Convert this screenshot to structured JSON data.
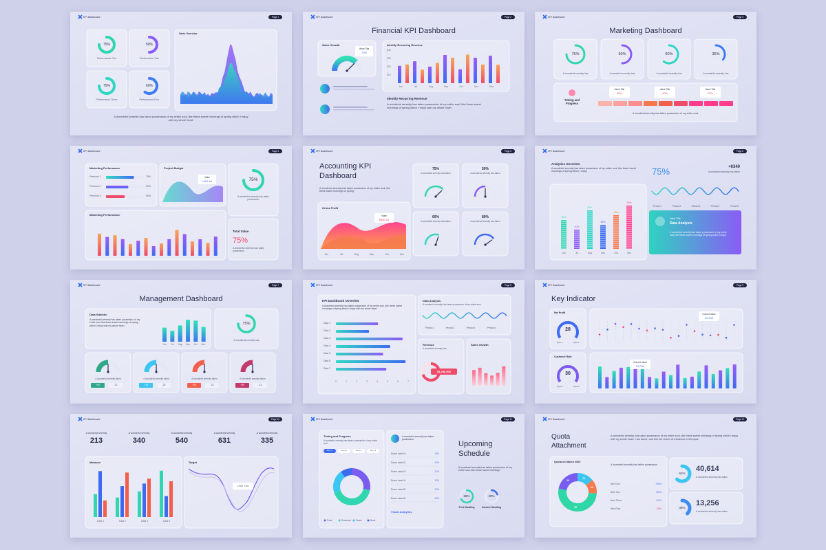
{
  "brand": "KPI Dashboard",
  "slides": [
    {
      "page": "Page 1",
      "cards": [
        {
          "value": 75,
          "label": "75%",
          "caption": "Performance One"
        },
        {
          "value": 50,
          "label": "50%",
          "caption": "Performance Two"
        },
        {
          "value": 75,
          "label": "75%",
          "caption": "Performance Three"
        },
        {
          "value": 60,
          "label": "60%",
          "caption": "Performance Four"
        }
      ],
      "chart_title": "Sales Overview",
      "text": "A wonderful serenity has taken possession of my entire soul, like these sweet mornings of spring which I enjoy with my whole heart."
    },
    {
      "page": "Page 2",
      "title": "Financial KPI Dashboard",
      "gauge_title": "Sales Growth",
      "tag_title": "Value Title",
      "tag_value": "75%",
      "chart_title": "Identify Recurring Revenue",
      "months": [
        "Jun",
        "Jul",
        "Aug",
        "Sep",
        "Oct",
        "Nov",
        "Dec"
      ],
      "yticks": [
        "$40",
        "$30",
        "$20",
        "$10"
      ],
      "subtitle": "Identify Recurring Revenue",
      "text": "A wonderful serenity has taken possession of my entire soul, like these sweet mornings of spring which I enjoy with my whole heart."
    },
    {
      "page": "Page 3",
      "title": "Marketing Dashboard",
      "cards": [
        {
          "value": 75,
          "label": "75%",
          "caption": "A wonderful serenity has"
        },
        {
          "value": 50,
          "label": "50%",
          "caption": "A wonderful serenity has"
        },
        {
          "value": 60,
          "label": "60%",
          "caption": "A wonderful serenity has"
        },
        {
          "value": 35,
          "label": "35%",
          "caption": "A wonderful serenity has"
        }
      ],
      "progress_title": "Timing and Progress",
      "tags": [
        {
          "title": "Value Title",
          "value": "35%"
        },
        {
          "title": "Value Title",
          "value": "40%"
        },
        {
          "title": "Value Title",
          "value": "20%"
        }
      ],
      "text": "A wonderful serenity has taken possession of my entire soul."
    },
    {
      "page": "Page 4",
      "perf_title": "Marketing Performance",
      "rows": [
        {
          "name": "Premium 1",
          "value": 75,
          "label": "75%"
        },
        {
          "name": "Premium 2",
          "value": 60,
          "label": "60%"
        },
        {
          "name": "Premium 3",
          "value": 50,
          "label": "50%"
        }
      ],
      "budget_title": "Project Budget",
      "budget_tag": "Value",
      "budget_value": "USD 50",
      "ring": {
        "value": 75,
        "label": "75%"
      },
      "ring_text": "A wonderful serenity has taken possession",
      "chart_title": "Marketing Performance",
      "total_title": "Total Value",
      "total_value": "75%",
      "total_text": "A wonderful serenity has taken possession"
    },
    {
      "page": "Page 5",
      "title": "Accounting KPI Dashboard",
      "text": "A wonderful serenity has taken possession of my entire soul, like these sweet mornings of spring.",
      "chart_title": "Gross Profit",
      "tag": "Value",
      "tag_value": "$660.00",
      "months": [
        "Jan",
        "Jul",
        "Aug",
        "Sep",
        "Oct",
        "Nov"
      ],
      "gauges": [
        {
          "label": "75%",
          "caption": "A wonderful serenity has taken"
        },
        {
          "label": "50%",
          "caption": "A wonderful serenity has taken"
        },
        {
          "label": "60%",
          "caption": "A wonderful serenity has taken"
        },
        {
          "label": "80%",
          "caption": "A wonderful serenity has taken"
        }
      ]
    },
    {
      "page": "Page 6",
      "title": "Analytics Overview",
      "text": "A wonderful serenity has taken possession of my entire soul, like these sweet mornings of spring which I enjoy.",
      "bars": [
        {
          "value": 60,
          "label": "60%"
        },
        {
          "value": 40,
          "label": "40%"
        },
        {
          "value": 80,
          "label": "80%"
        },
        {
          "value": 50,
          "label": "50%"
        },
        {
          "value": 70,
          "label": "70%"
        },
        {
          "value": 90,
          "label": "90%"
        }
      ],
      "months": [
        "Jun",
        "Jul",
        "Aug",
        "Sep",
        "Oct",
        "Nov"
      ],
      "big": "75%",
      "delta": "+6340",
      "delta_text": "A wonderful serenity has taken",
      "periods": [
        "Period 1",
        "Period 2",
        "Period 3",
        "Period 4",
        "Period 5"
      ],
      "card_small": "Value Title",
      "card_title": "Data Analysis",
      "card_text": "A wonderful serenity has taken possession of my entire soul, like these sweet mornings of spring which I enjoy."
    },
    {
      "page": "Page 7",
      "title": "Management Dashboard",
      "stat_title": "Data Statistic",
      "stat_text": "A wonderful serenity has taken possession of my entire soul, like these sweet mornings of spring which I enjoy with my whole heart.",
      "months": [
        "Jun",
        "Jul",
        "Aug",
        "Sep",
        "Oct",
        "Nov"
      ],
      "ring": {
        "value": 75,
        "label": "75%"
      },
      "ring_text": "A wonderful serenity has",
      "gauges": [
        {
          "caption": "A wonderful serenity taken",
          "up": "+40",
          "down": "-10"
        },
        {
          "caption": "A wonderful serenity taken",
          "up": "+15",
          "down": "-20"
        },
        {
          "caption": "A wonderful serenity taken",
          "up": "+20",
          "down": "-15"
        },
        {
          "caption": "A wonderful serenity taken",
          "up": "+30",
          "down": "-14"
        }
      ]
    },
    {
      "page": "Page 8",
      "title": "KPI Dashboard Overview",
      "text": "A wonderful serenity has taken possession of my entire soul, like these sweet mornings of spring which I enjoy with my whole heart.",
      "rows": [
        "Data 1",
        "Data 2",
        "Data 3",
        "Data 4",
        "Data 5",
        "Data 6",
        "Data 7"
      ],
      "axis": [
        "0",
        "1",
        "2",
        "3",
        "4",
        "5",
        "6",
        "7"
      ],
      "analysis_title": "Data Analysis",
      "analysis_text": "A wonderful serenity has taken possession of my entire soul",
      "periods": [
        "Period 1",
        "Period 2",
        "Period 3",
        "Period 4"
      ],
      "revenue_title": "Revenue",
      "revenue_text": "A wonderful serenity has",
      "revenue_value": "$1,456,000",
      "growth_title": "Sales Growth"
    },
    {
      "page": "Page 9",
      "title": "Key Indicator",
      "kpis": [
        {
          "title": "Net Profit",
          "value": "28",
          "left": "Type 1",
          "right": "Type 2"
        },
        {
          "title": "Customer Rate",
          "value": "30",
          "left": "Type 1",
          "right": "Type 2"
        }
      ],
      "tags": [
        {
          "title": "Current Value",
          "value": "10,000"
        },
        {
          "title": "Current Value",
          "value": "10,000"
        }
      ]
    },
    {
      "page": "Page 10",
      "stats": [
        {
          "title": "A wonderful serenity",
          "value": "213"
        },
        {
          "title": "A wonderful serenity",
          "value": "340"
        },
        {
          "title": "A wonderful serenity",
          "value": "540"
        },
        {
          "title": "A wonderful serenity",
          "value": "631"
        },
        {
          "title": "A wonderful serenity",
          "value": "335"
        }
      ],
      "measure_title": "Measure",
      "measure_cats": [
        "Data 1",
        "Data 2",
        "Data 3",
        "Data 4"
      ],
      "target_title": "Target",
      "target_tag": "USD 700"
    },
    {
      "page": "Page 11",
      "progress_title": "Timing and Progress",
      "progress_text": "A wonderful serenity has taken possession of my entire soul.",
      "tabs": [
        "Item 1",
        "Item 2",
        "Item 3",
        "Item 4"
      ],
      "legend": [
        "Food",
        "Economic",
        "Game",
        "Book"
      ],
      "list_text": "A wonderful serenity has taken possession.",
      "list": [
        {
          "name": "Dome data 01",
          "value": "12%"
        },
        {
          "name": "Dome data 02",
          "value": "12%"
        },
        {
          "name": "Dome data 03",
          "value": "12%"
        },
        {
          "name": "Dome data 04",
          "value": "12%"
        },
        {
          "name": "Dome data 05",
          "value": "12%"
        },
        {
          "name": "Dome data 06",
          "value": "12%"
        }
      ],
      "list_footer": "Visual Analytics",
      "title": "Upcoming Schedule",
      "text": "A wonderful serenity has taken possession of my entire soul, like these sweet mornings.",
      "rings": [
        {
          "value": 68,
          "label": "68%",
          "caption": "First Handling"
        },
        {
          "value": 20,
          "label": "20%",
          "caption": "Second Handling"
        }
      ]
    },
    {
      "page": "Page 12",
      "title": "Quota Attachment",
      "text": "A wonderful serenity has taken possession of my entire soul, like these sweet mornings of spring which I enjoy with my whole heart. I am alone, and feel the charm of existence in this spot.",
      "chart_title": "Quota on March 2023",
      "chart_text": "A wonderful serenity has taken possession",
      "segments": [
        {
          "value": 14,
          "color": "#3bc6f2"
        },
        {
          "value": 12,
          "color": "#f47a4f"
        },
        {
          "value": 52,
          "color": "#2fd6a6"
        },
        {
          "value": 22,
          "color": "#7a5cf0"
        }
      ],
      "items": [
        {
          "name": "Item One",
          "value": "+25%"
        },
        {
          "name": "Item Two",
          "value": "+42%"
        },
        {
          "name": "Item Three",
          "value": "+12%"
        },
        {
          "name": "Item Four",
          "value": "-25%"
        }
      ],
      "stats": [
        {
          "ring": {
            "value": 62,
            "label": "62%"
          },
          "value": "40,614",
          "text": "A wonderful serenity has taken"
        },
        {
          "ring": {
            "value": 38,
            "label": "38%"
          },
          "value": "13,256",
          "text": "A wonderful serenity has taken"
        }
      ]
    }
  ]
}
